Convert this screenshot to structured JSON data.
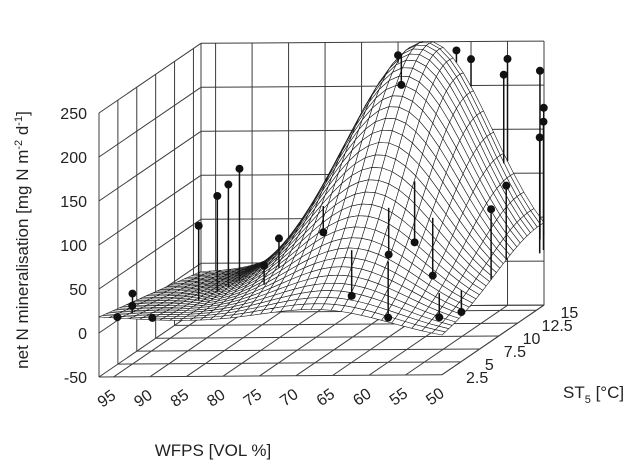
{
  "chart_data": {
    "type": "surface3d",
    "title": "",
    "zlabel": "net N mineralisation [mg N m-2 d-1]",
    "zlabel_parts": [
      "net N mineralisation [mg N m",
      "-2",
      " d",
      "-1",
      "]"
    ],
    "xlabel": "WFPS [VOL %]",
    "ylabel_parts": [
      "ST",
      "5",
      " [°C]"
    ],
    "x_ticks": [
      "95",
      "90",
      "85",
      "80",
      "75",
      "70",
      "65",
      "60",
      "55",
      "50"
    ],
    "y_ticks": [
      "2.5",
      "5",
      "7.5",
      "10",
      "12.5",
      "15"
    ],
    "z_ticks": [
      "-50",
      "0",
      "50",
      "100",
      "150",
      "200",
      "250"
    ],
    "xlim": [
      50,
      97
    ],
    "ylim": [
      2.5,
      16
    ],
    "zlim": [
      -50,
      250
    ],
    "surface": {
      "model": "gaussian-peak",
      "peak_wfps": 66,
      "peak_st5": 15.5,
      "peak_value": 262,
      "sigma_wfps": 9,
      "sigma_st5": 6,
      "trend": "0.6*(WFPS-50)*(1-(ST5-2.5)/13.5)",
      "offset": -10
    },
    "observations": [
      {
        "wfps": 95,
        "st5": 3.0,
        "value": 15
      },
      {
        "wfps": 94,
        "st5": 4.0,
        "value": 22
      },
      {
        "wfps": 95,
        "st5": 5.0,
        "value": 30
      },
      {
        "wfps": 90,
        "st5": 2.8,
        "value": 15
      },
      {
        "wfps": 88,
        "st5": 7.0,
        "value": 95
      },
      {
        "wfps": 87,
        "st5": 8.5,
        "value": 120
      },
      {
        "wfps": 86,
        "st5": 9.0,
        "value": 130
      },
      {
        "wfps": 85,
        "st5": 9.5,
        "value": 145
      },
      {
        "wfps": 78,
        "st5": 6.0,
        "value": 55
      },
      {
        "wfps": 77,
        "st5": 7.0,
        "value": 80
      },
      {
        "wfps": 73,
        "st5": 9.0,
        "value": 75
      },
      {
        "wfps": 70,
        "st5": 16.0,
        "value": 235
      },
      {
        "wfps": 68,
        "st5": 14.5,
        "value": 210
      },
      {
        "wfps": 66,
        "st5": 6.0,
        "value": 20
      },
      {
        "wfps": 63,
        "st5": 8.0,
        "value": 55
      },
      {
        "wfps": 61,
        "st5": 9.5,
        "value": 60
      },
      {
        "wfps": 61,
        "st5": 6.0,
        "value": -5
      },
      {
        "wfps": 62,
        "st5": 16.0,
        "value": 240
      },
      {
        "wfps": 60,
        "st5": 16.0,
        "value": 230
      },
      {
        "wfps": 58,
        "st5": 9.0,
        "value": 25
      },
      {
        "wfps": 55,
        "st5": 16.0,
        "value": 230
      },
      {
        "wfps": 55,
        "st5": 15.5,
        "value": 215
      },
      {
        "wfps": 54,
        "st5": 6.0,
        "value": -5
      },
      {
        "wfps": 52,
        "st5": 7.0,
        "value": -5
      },
      {
        "wfps": 50,
        "st5": 9.0,
        "value": 100
      },
      {
        "wfps": 50,
        "st5": 11.0,
        "value": 115
      },
      {
        "wfps": 49,
        "st5": 14.5,
        "value": 225
      },
      {
        "wfps": 48,
        "st5": 14.0,
        "value": 170
      },
      {
        "wfps": 48,
        "st5": 13.5,
        "value": 155
      },
      {
        "wfps": 49,
        "st5": 15.0,
        "value": 180
      }
    ],
    "grid": true,
    "legend": "none",
    "colors": {
      "line": "#1a1a1a",
      "surface": "#ffffff",
      "wall_grid": "#3c3c3c",
      "point": "#111111"
    }
  }
}
